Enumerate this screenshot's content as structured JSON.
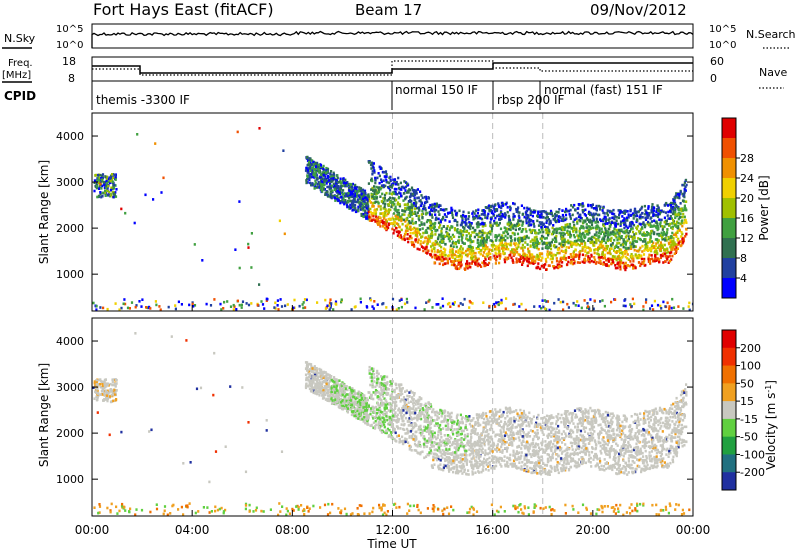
{
  "header": {
    "title": "Fort Hays East (fitACF)",
    "beam": "Beam 17",
    "date": "09/Nov/2012"
  },
  "top_panels": {
    "nsky_label": "N.Sky",
    "nsearch_label": "N.Search",
    "noise_ticks_left": [
      "10^5",
      "10^0"
    ],
    "noise_ticks_right": [
      "10^5",
      "10^0"
    ],
    "freq_label_1": "Freq.",
    "freq_label_2": "[MHz]",
    "freq_ticks": [
      "18",
      "8"
    ],
    "nave_label": "Nave",
    "nave_ticks": [
      "60",
      "0"
    ],
    "cpid_label": "CPID",
    "cpid_segments": [
      {
        "label": "themis -3300 IF",
        "start": 0.0
      },
      {
        "label": "normal 150 IF",
        "start": 12.0
      },
      {
        "label": "rbsp 200 IF",
        "start": 16.0
      },
      {
        "label": "normal (fast) 151 IF",
        "start": 18.0
      }
    ]
  },
  "chart_data": [
    {
      "type": "heatmap",
      "name": "power",
      "ylabel": "Slant Range [km]",
      "ylim": [
        200,
        4500
      ],
      "yticks": [
        1000,
        2000,
        3000,
        4000
      ],
      "xlim": [
        0,
        24
      ],
      "colorbar": {
        "label": "Power [dB]",
        "ticks": [
          "4",
          "8",
          "12",
          "16",
          "20",
          "24",
          "28"
        ],
        "colors": [
          "#0000ff",
          "#2040a0",
          "#307050",
          "#40a040",
          "#a0c000",
          "#f0d000",
          "#f09000",
          "#f05000",
          "#e00000"
        ]
      }
    },
    {
      "type": "heatmap",
      "name": "velocity",
      "ylabel": "Slant Range [km]",
      "ylim": [
        200,
        4500
      ],
      "yticks": [
        1000,
        2000,
        3000,
        4000
      ],
      "xlim": [
        0,
        24
      ],
      "xlabel": "Time UT",
      "xticks": [
        "00:00",
        "04:00",
        "08:00",
        "12:00",
        "16:00",
        "20:00",
        "00:00"
      ],
      "colorbar": {
        "label": "Velocity [m s^-1]",
        "ticks": [
          "200",
          "100",
          "50",
          "15",
          "-15",
          "-50",
          "-100",
          "-200"
        ],
        "colors": [
          "#2030a0",
          "#207080",
          "#20a040",
          "#60d040",
          "#c8c8c0",
          "#f0a020",
          "#f07000",
          "#f03000",
          "#e00000"
        ]
      }
    }
  ]
}
